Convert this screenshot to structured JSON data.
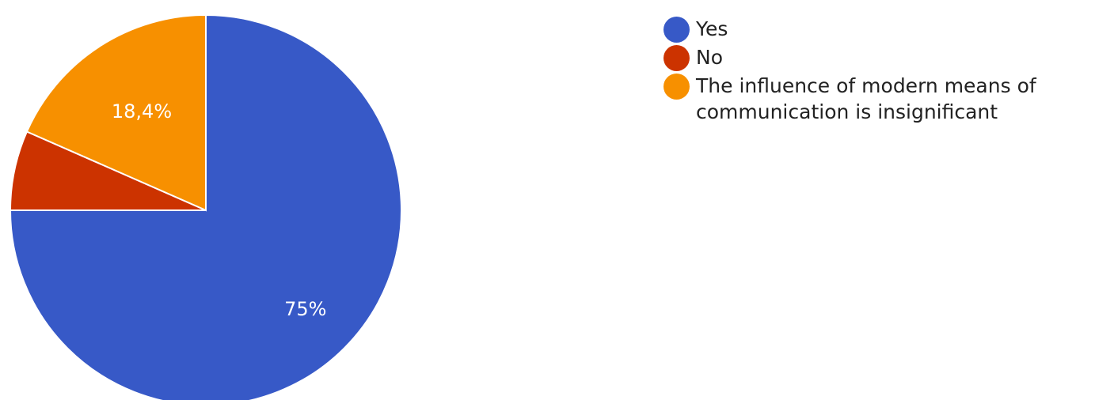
{
  "chart_data": {
    "type": "pie",
    "title": "",
    "categories": [
      "Yes",
      "No",
      "The influence of modern means of communication is insignificant"
    ],
    "values": [
      75,
      6.6,
      18.4
    ],
    "data_labels": [
      "75%",
      "",
      "18,4%"
    ],
    "colors": [
      "#3759c7",
      "#cc3300",
      "#f79000"
    ],
    "start_angle_deg": 0,
    "direction": "clockwise",
    "legend": {
      "position": "right",
      "items": [
        {
          "label": "Yes",
          "color": "#3759c7"
        },
        {
          "label": "No",
          "color": "#cc3300"
        },
        {
          "label": "The influence of modern means of communication is insignificant",
          "color": "#f79000"
        }
      ]
    }
  }
}
